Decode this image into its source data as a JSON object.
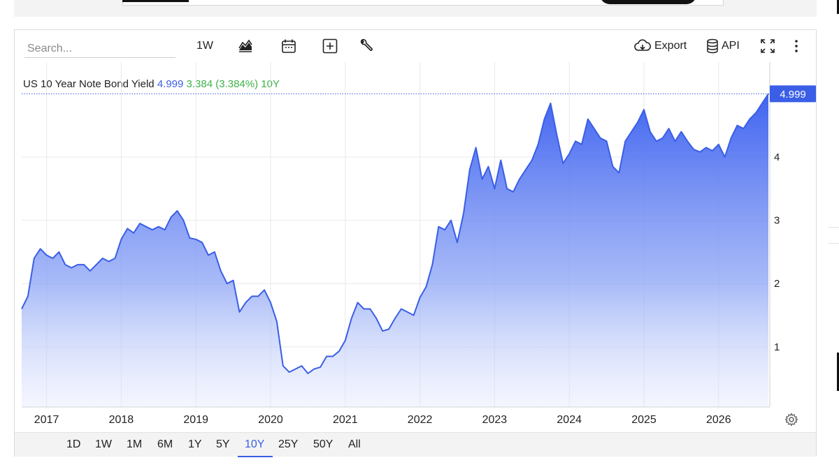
{
  "toolbar": {
    "search_placeholder": "Search...",
    "interval": "1W",
    "export_label": "Export",
    "api_label": "API"
  },
  "legend": {
    "name": "US 10 Year Note Bond Yield",
    "last": "4.999",
    "change": "3.384 (3.384%)",
    "period": "10Y"
  },
  "colors": {
    "line": "#3a5ee6",
    "accent": "#3a5ee6",
    "positive": "#3cb24a",
    "grid": "#e8e8e8"
  },
  "ranges": [
    "1D",
    "1W",
    "1M",
    "6M",
    "1Y",
    "5Y",
    "10Y",
    "25Y",
    "50Y",
    "All"
  ],
  "active_range": "10Y",
  "chart_data": {
    "type": "area",
    "title": "",
    "xlabel": "",
    "ylabel": "",
    "x_ticks": [
      "2017",
      "2018",
      "2019",
      "2020",
      "2021",
      "2022",
      "2023",
      "2024",
      "2025",
      "2026"
    ],
    "y_ticks": [
      1,
      2,
      3,
      4
    ],
    "ylim": [
      0.05,
      5.5
    ],
    "last_value_label": "4.999",
    "grid": true,
    "series": [
      {
        "x": [
          "2016-09",
          "2016-10",
          "2016-11",
          "2016-12",
          "2017-01",
          "2017-02",
          "2017-03",
          "2017-04",
          "2017-05",
          "2017-06",
          "2017-07",
          "2017-08",
          "2017-09",
          "2017-10",
          "2017-11",
          "2017-12",
          "2018-01",
          "2018-02",
          "2018-03",
          "2018-04",
          "2018-05",
          "2018-06",
          "2018-07",
          "2018-08",
          "2018-09",
          "2018-10",
          "2018-11",
          "2018-12",
          "2019-01",
          "2019-02",
          "2019-03",
          "2019-04",
          "2019-05",
          "2019-06",
          "2019-07",
          "2019-08",
          "2019-09",
          "2019-10",
          "2019-11",
          "2019-12",
          "2020-01",
          "2020-02",
          "2020-03",
          "2020-04",
          "2020-05",
          "2020-06",
          "2020-07",
          "2020-08",
          "2020-09",
          "2020-10",
          "2020-11",
          "2020-12",
          "2021-01",
          "2021-02",
          "2021-03",
          "2021-04",
          "2021-05",
          "2021-06",
          "2021-07",
          "2021-08",
          "2021-09",
          "2021-10",
          "2021-11",
          "2021-12",
          "2022-01",
          "2022-02",
          "2022-03",
          "2022-04",
          "2022-05",
          "2022-06",
          "2022-07",
          "2022-08",
          "2022-09",
          "2022-10",
          "2022-11",
          "2022-12",
          "2023-01",
          "2023-02",
          "2023-03",
          "2023-04",
          "2023-05",
          "2023-06",
          "2023-07",
          "2023-08",
          "2023-09",
          "2023-10",
          "2023-11",
          "2023-12",
          "2024-01",
          "2024-02",
          "2024-03",
          "2024-04",
          "2024-05",
          "2024-06",
          "2024-07",
          "2024-08",
          "2024-09",
          "2024-10",
          "2024-11",
          "2024-12",
          "2025-01",
          "2025-02",
          "2025-03",
          "2025-04",
          "2025-05",
          "2025-06",
          "2025-07",
          "2025-08",
          "2025-09",
          "2025-10",
          "2025-11",
          "2025-12",
          "2026-01",
          "2026-02",
          "2026-03",
          "2026-04",
          "2026-05",
          "2026-06",
          "2026-07",
          "2026-08",
          "2026-09"
        ],
        "values": [
          1.6,
          1.8,
          2.4,
          2.55,
          2.45,
          2.4,
          2.5,
          2.3,
          2.25,
          2.3,
          2.3,
          2.2,
          2.3,
          2.4,
          2.35,
          2.4,
          2.7,
          2.87,
          2.8,
          2.95,
          2.9,
          2.85,
          2.9,
          2.85,
          3.05,
          3.15,
          3.0,
          2.72,
          2.7,
          2.65,
          2.45,
          2.5,
          2.2,
          2.0,
          2.05,
          1.55,
          1.7,
          1.8,
          1.8,
          1.9,
          1.7,
          1.4,
          0.7,
          0.6,
          0.65,
          0.7,
          0.58,
          0.65,
          0.68,
          0.85,
          0.85,
          0.93,
          1.1,
          1.45,
          1.7,
          1.6,
          1.6,
          1.45,
          1.25,
          1.28,
          1.45,
          1.6,
          1.55,
          1.5,
          1.78,
          1.95,
          2.3,
          2.9,
          2.85,
          3.0,
          2.65,
          3.1,
          3.8,
          4.15,
          3.65,
          3.85,
          3.5,
          3.95,
          3.5,
          3.45,
          3.65,
          3.8,
          3.95,
          4.2,
          4.6,
          4.85,
          4.35,
          3.9,
          4.05,
          4.25,
          4.2,
          4.6,
          4.45,
          4.3,
          4.25,
          3.85,
          3.75,
          4.25,
          4.4,
          4.55,
          4.75,
          4.4,
          4.25,
          4.3,
          4.45,
          4.25,
          4.4,
          4.25,
          4.12,
          4.08,
          4.15,
          4.1,
          4.2,
          4.0,
          4.3,
          4.5,
          4.45,
          4.6,
          4.7,
          4.85,
          4.999
        ]
      }
    ]
  }
}
